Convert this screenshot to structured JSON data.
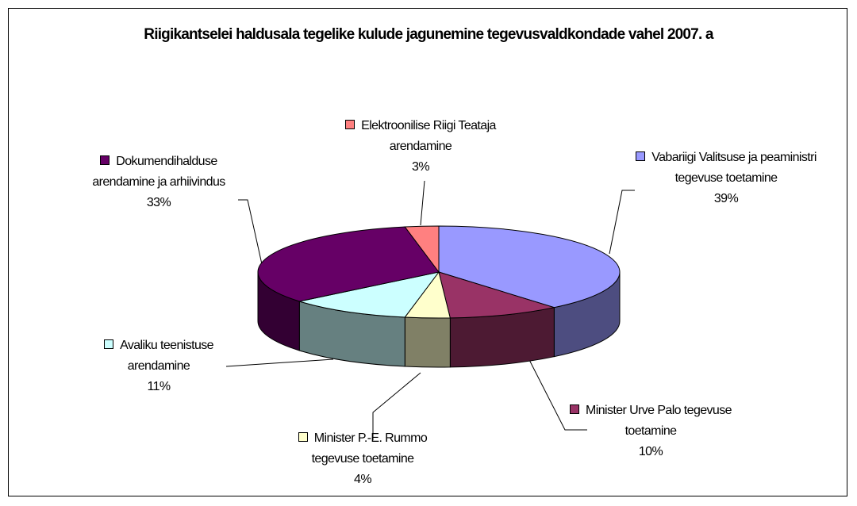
{
  "chart_data": {
    "type": "pie",
    "title": "Riigikantselei haldusala tegelike kulude jagunemine tegevusvaldkondade vahel 2007. a",
    "categories": [
      "Vabariigi Valitsuse ja peaministri tegevuse toetamine",
      "Minister Urve Palo tegevuse toetamine",
      "Minister P.-E. Rummo tegevuse toetamine",
      "Avaliku teenistuse arendamine",
      "Dokumendihalduse arendamine ja arhiivindus",
      "Elektroonilise Riigi Teataja arendamine"
    ],
    "values": [
      39,
      10,
      4,
      11,
      33,
      3
    ],
    "value_labels": [
      "39%",
      "10%",
      "4%",
      "11%",
      "33%",
      "3%"
    ],
    "colors": [
      "#9999ff",
      "#993366",
      "#ffffcc",
      "#ccffff",
      "#660066",
      "#ff8080"
    ]
  }
}
